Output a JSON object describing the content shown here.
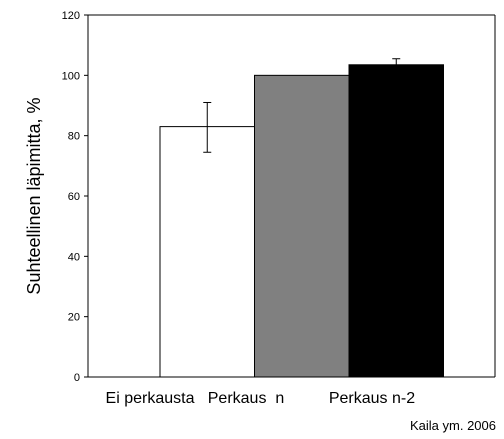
{
  "chart_data": {
    "type": "bar",
    "ylabel": "Suhteellinen läpimitta, %",
    "ylim": [
      0,
      120
    ],
    "yticks": [
      "0",
      "20",
      "40",
      "60",
      "80",
      "100",
      "120"
    ],
    "categories": [
      "Ei perkausta",
      "Perkaus  n",
      "Perkaus n-2"
    ],
    "values": [
      83,
      100,
      103.5
    ],
    "error": [
      {
        "low": 74.5,
        "high": 91
      },
      null,
      {
        "low": 101,
        "high": 105.5
      }
    ],
    "bar_colors": [
      "#ffffff",
      "#808080",
      "#000000"
    ],
    "grid": false,
    "annotation": "Kaila ym. 2006"
  }
}
